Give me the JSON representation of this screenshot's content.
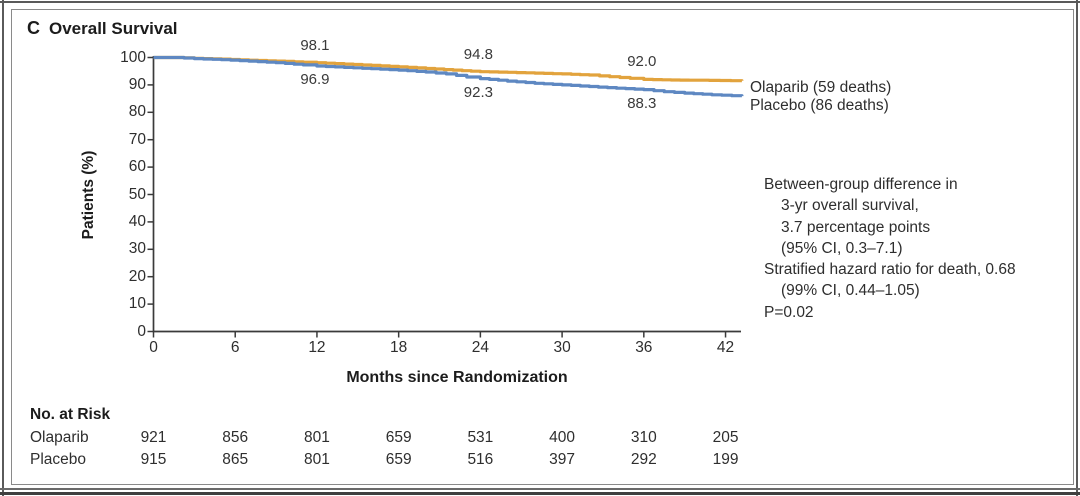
{
  "panel": {
    "letter": "C",
    "title": "Overall Survival"
  },
  "chart_data": {
    "type": "line",
    "subtype": "kaplan-meier-step",
    "title": "Overall Survival",
    "xlabel": "Months since Randomization",
    "ylabel": "Patients (%)",
    "xlim": [
      0,
      43.2
    ],
    "ylim": [
      0,
      100
    ],
    "x_ticks": [
      0,
      6,
      12,
      18,
      24,
      30,
      36,
      42
    ],
    "y_ticks": [
      100,
      90,
      80,
      70,
      60,
      50,
      40,
      30,
      20,
      10,
      0
    ],
    "grid": false,
    "legend_position": "right-of-curve-ends",
    "series": [
      {
        "name": "Olaparib",
        "legend_label": "Olaparib (59 deaths)",
        "color": "#E2A33D",
        "points": [
          [
            0,
            100
          ],
          [
            1.5,
            100
          ],
          [
            3,
            99.7
          ],
          [
            5,
            99.4
          ],
          [
            7,
            99.0
          ],
          [
            9,
            98.7
          ],
          [
            11,
            98.3
          ],
          [
            12,
            98.1
          ],
          [
            14,
            97.6
          ],
          [
            16,
            97.1
          ],
          [
            18,
            96.6
          ],
          [
            20,
            96.0
          ],
          [
            22,
            95.4
          ],
          [
            24,
            94.8
          ],
          [
            26,
            94.6
          ],
          [
            28,
            94.3
          ],
          [
            30,
            94.0
          ],
          [
            32,
            93.6
          ],
          [
            33.5,
            93.0
          ],
          [
            35,
            92.4
          ],
          [
            36,
            92.0
          ],
          [
            38,
            91.8
          ],
          [
            40,
            91.7
          ],
          [
            43.2,
            91.5
          ]
        ],
        "value_labels": [
          {
            "text": "98.1",
            "month": 12,
            "pct": 98.1
          },
          {
            "text": "94.8",
            "month": 24,
            "pct": 94.8
          },
          {
            "text": "92.0",
            "month": 36,
            "pct": 92.0
          }
        ]
      },
      {
        "name": "Placebo",
        "legend_label": "Placebo (86 deaths)",
        "color": "#5E88C2",
        "points": [
          [
            0,
            100
          ],
          [
            1.5,
            100
          ],
          [
            3,
            99.6
          ],
          [
            5,
            99.2
          ],
          [
            7,
            98.7
          ],
          [
            9,
            98.1
          ],
          [
            11,
            97.3
          ],
          [
            12,
            96.9
          ],
          [
            14,
            96.4
          ],
          [
            16,
            95.9
          ],
          [
            18,
            95.4
          ],
          [
            20,
            94.7
          ],
          [
            21.5,
            94.0
          ],
          [
            23,
            92.9
          ],
          [
            24,
            92.3
          ],
          [
            26,
            91.4
          ],
          [
            28,
            90.6
          ],
          [
            30,
            90.0
          ],
          [
            32,
            89.4
          ],
          [
            34,
            88.8
          ],
          [
            36,
            88.3
          ],
          [
            37.5,
            87.5
          ],
          [
            39,
            87.0
          ],
          [
            41,
            86.4
          ],
          [
            43.2,
            85.9
          ]
        ],
        "value_labels": [
          {
            "text": "96.9",
            "month": 12,
            "pct": 96.9
          },
          {
            "text": "92.3",
            "month": 24,
            "pct": 92.3
          },
          {
            "text": "88.3",
            "month": 36,
            "pct": 88.3
          }
        ]
      }
    ],
    "annotation_lines": [
      {
        "text": "Between-group difference in",
        "indent": false
      },
      {
        "text": "3-yr overall survival,",
        "indent": true
      },
      {
        "text": "3.7 percentage points",
        "indent": true
      },
      {
        "text": "(95% CI, 0.3–7.1)",
        "indent": true
      },
      {
        "text": "Stratified hazard ratio for death, 0.68",
        "indent": false
      },
      {
        "text": "(99% CI, 0.44–1.05)",
        "indent": true
      },
      {
        "text": "P=0.02",
        "indent": false
      }
    ]
  },
  "risk_table": {
    "header": "No. at Risk",
    "months": [
      0,
      6,
      12,
      18,
      24,
      30,
      36,
      42
    ],
    "rows": [
      {
        "label": "Olaparib",
        "values": [
          "921",
          "856",
          "801",
          "659",
          "531",
          "400",
          "310",
          "205"
        ]
      },
      {
        "label": "Placebo",
        "values": [
          "915",
          "865",
          "801",
          "659",
          "516",
          "397",
          "292",
          "199"
        ]
      }
    ]
  }
}
